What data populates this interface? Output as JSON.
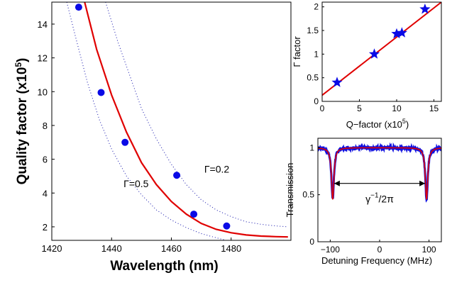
{
  "chart_data": [
    {
      "type": "scatter",
      "xlabel": "Wavelength (nm)",
      "ylabel_main": "Quality factor (x10",
      "ylabel_sup": "5",
      "ylabel_close": ")",
      "xlim": [
        1420,
        1500
      ],
      "ylim": [
        1.2,
        15.3
      ],
      "xticks": [
        1420,
        1440,
        1460,
        1480
      ],
      "yticks": [
        2,
        4,
        6,
        8,
        10,
        12,
        14
      ],
      "colors": {
        "points": "#0a0ae6",
        "fit": "#e00000",
        "bounds": "#1010aa"
      },
      "points": [
        {
          "x": 1429,
          "y": 15.0
        },
        {
          "x": 1436.5,
          "y": 9.95
        },
        {
          "x": 1444.5,
          "y": 7.0
        },
        {
          "x": 1461.8,
          "y": 5.05
        },
        {
          "x": 1467.5,
          "y": 2.75
        },
        {
          "x": 1478.5,
          "y": 2.05
        }
      ],
      "fit_curve": [
        {
          "x": 1431,
          "y": 15.3
        },
        {
          "x": 1435,
          "y": 12.5
        },
        {
          "x": 1440,
          "y": 9.8
        },
        {
          "x": 1445,
          "y": 7.6
        },
        {
          "x": 1450,
          "y": 5.8
        },
        {
          "x": 1455,
          "y": 4.5
        },
        {
          "x": 1460,
          "y": 3.5
        },
        {
          "x": 1465,
          "y": 2.75
        },
        {
          "x": 1470,
          "y": 2.2
        },
        {
          "x": 1475,
          "y": 1.85
        },
        {
          "x": 1480,
          "y": 1.65
        },
        {
          "x": 1485,
          "y": 1.52
        },
        {
          "x": 1490,
          "y": 1.45
        },
        {
          "x": 1495,
          "y": 1.42
        },
        {
          "x": 1499,
          "y": 1.4
        }
      ],
      "bound_curves": [
        [
          {
            "x": 1425,
            "y": 15.3
          },
          {
            "x": 1428,
            "y": 13.2
          },
          {
            "x": 1432,
            "y": 10.5
          },
          {
            "x": 1436,
            "y": 8.3
          },
          {
            "x": 1440,
            "y": 6.6
          },
          {
            "x": 1445,
            "y": 5.0
          },
          {
            "x": 1450,
            "y": 3.9
          },
          {
            "x": 1455,
            "y": 3.0
          },
          {
            "x": 1460,
            "y": 2.4
          },
          {
            "x": 1465,
            "y": 1.95
          },
          {
            "x": 1470,
            "y": 1.6
          },
          {
            "x": 1475,
            "y": 1.35
          },
          {
            "x": 1478,
            "y": 1.22
          }
        ],
        [
          {
            "x": 1438,
            "y": 15.3
          },
          {
            "x": 1442,
            "y": 13.0
          },
          {
            "x": 1446,
            "y": 11.0
          },
          {
            "x": 1450,
            "y": 9.0
          },
          {
            "x": 1455,
            "y": 7.2
          },
          {
            "x": 1460,
            "y": 5.7
          },
          {
            "x": 1465,
            "y": 4.5
          },
          {
            "x": 1470,
            "y": 3.6
          },
          {
            "x": 1475,
            "y": 3.0
          },
          {
            "x": 1480,
            "y": 2.6
          },
          {
            "x": 1485,
            "y": 2.3
          },
          {
            "x": 1490,
            "y": 2.15
          },
          {
            "x": 1495,
            "y": 2.05
          },
          {
            "x": 1499,
            "y": 2.0
          }
        ]
      ],
      "annotations": [
        {
          "label_prefix": "Γ",
          "label_rest": "=0.5",
          "x": 1444,
          "y": 4.35
        },
        {
          "label_prefix": "Γ",
          "label_rest": "=0.2",
          "x": 1471,
          "y": 5.2
        }
      ]
    },
    {
      "type": "scatter",
      "xlabel_main": "Q−factor (x10",
      "xlabel_sup": "5",
      "xlabel_close": ")",
      "ylabel": "Γ factor",
      "xlim": [
        0,
        16
      ],
      "ylim": [
        0,
        2.1
      ],
      "xticks": [
        0,
        5,
        10,
        15
      ],
      "yticks": [
        0,
        0.5,
        1,
        1.5,
        2
      ],
      "colors": {
        "points": "#0a0ae6",
        "fit": "#e00000"
      },
      "marker": "star",
      "points": [
        {
          "x": 2,
          "y": 0.4
        },
        {
          "x": 7,
          "y": 1.0
        },
        {
          "x": 10,
          "y": 1.43
        },
        {
          "x": 10.7,
          "y": 1.45
        },
        {
          "x": 13.8,
          "y": 1.95
        }
      ],
      "fit_line": [
        {
          "x": 0,
          "y": 0.13
        },
        {
          "x": 16,
          "y": 2.1
        }
      ]
    },
    {
      "type": "line",
      "xlabel": "Detuning Frequency (MHz)",
      "ylabel": "Transmission",
      "xlim": [
        -125,
        125
      ],
      "ylim": [
        0,
        1.1
      ],
      "xticks": [
        -100,
        0,
        100
      ],
      "ytick_labels": [
        "0",
        "0.5",
        "1"
      ],
      "yticks": [
        0,
        0.5,
        1
      ],
      "dip_centers": [
        -95,
        95
      ],
      "dip_depth": 0.55,
      "dip_width": 3,
      "baseline": 1.0,
      "colors": {
        "data": "#1010e0",
        "fit": "#e00000"
      },
      "annotation": {
        "base": "γ",
        "sup": "−1",
        "rest": "/2π"
      }
    }
  ]
}
